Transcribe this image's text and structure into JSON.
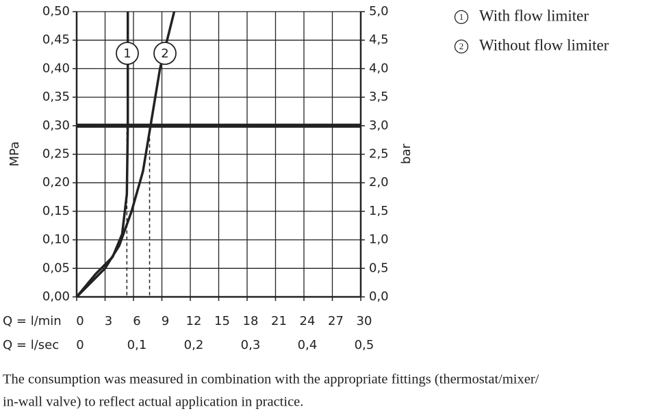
{
  "chart_data": {
    "type": "line",
    "ylabel": "MPa",
    "y2label": "bar",
    "xlabel": "Q = l/min",
    "x2label": "Q = l/sec",
    "xlim": [
      0,
      30
    ],
    "xticks": [
      0,
      3,
      6,
      9,
      12,
      15,
      18,
      21,
      24,
      27,
      30
    ],
    "x2lim": [
      0,
      0.5
    ],
    "x2ticks": [
      0,
      {
        "value": 0.1,
        "label": "0,1"
      },
      {
        "value": 0.2,
        "label": "0,2"
      },
      {
        "value": 0.3,
        "label": "0,3"
      },
      {
        "value": 0.4,
        "label": "0,4"
      },
      {
        "value": 0.5,
        "label": "0,5"
      }
    ],
    "ylim": [
      0,
      0.5
    ],
    "yticks": [
      {
        "value": 0,
        "label": "0,00"
      },
      {
        "value": 0.05,
        "label": "0,05"
      },
      {
        "value": 0.1,
        "label": "0,10"
      },
      {
        "value": 0.15,
        "label": "0,15"
      },
      {
        "value": 0.2,
        "label": "0,20"
      },
      {
        "value": 0.25,
        "label": "0,25"
      },
      {
        "value": 0.3,
        "label": "0,30"
      },
      {
        "value": 0.35,
        "label": "0,35"
      },
      {
        "value": 0.4,
        "label": "0,40"
      },
      {
        "value": 0.45,
        "label": "0,45"
      },
      {
        "value": 0.5,
        "label": "0,50"
      }
    ],
    "y2lim": [
      0,
      5
    ],
    "y2ticks": [
      {
        "value": 0,
        "label": "0,0"
      },
      {
        "value": 0.5,
        "label": "0,5"
      },
      {
        "value": 1,
        "label": "1,0"
      },
      {
        "value": 1.5,
        "label": "1,5"
      },
      {
        "value": 2,
        "label": "2,0"
      },
      {
        "value": 2.5,
        "label": "2,5"
      },
      {
        "value": 3,
        "label": "3,0"
      },
      {
        "value": 3.5,
        "label": "3,5"
      },
      {
        "value": 4,
        "label": "4,0"
      },
      {
        "value": 4.5,
        "label": "4,5"
      },
      {
        "value": 5,
        "label": "5,0"
      }
    ],
    "grid": true,
    "reference_y": 0.3,
    "dashed_x": [
      5.3,
      7.7
    ],
    "series": [
      {
        "name": "With flow limiter",
        "label": "1",
        "color": "#222222",
        "x": [
          0,
          2,
          3.8,
          4.8,
          5.3,
          5.4,
          5.4
        ],
        "values": [
          0,
          0.04,
          0.07,
          0.11,
          0.18,
          0.3,
          0.5
        ]
      },
      {
        "name": "Without flow limiter",
        "label": "2",
        "color": "#222222",
        "x": [
          0,
          3,
          4.5,
          5.8,
          7,
          7.8,
          8.8,
          10.3
        ],
        "values": [
          0,
          0.05,
          0.09,
          0.15,
          0.22,
          0.3,
          0.4,
          0.5
        ]
      }
    ],
    "legend": "upper right",
    "footnote": [
      "The consumption was measured in combination with the appropriate fittings (thermostat/mixer/",
      "in-wall valve) to reflect actual application in practice."
    ]
  }
}
